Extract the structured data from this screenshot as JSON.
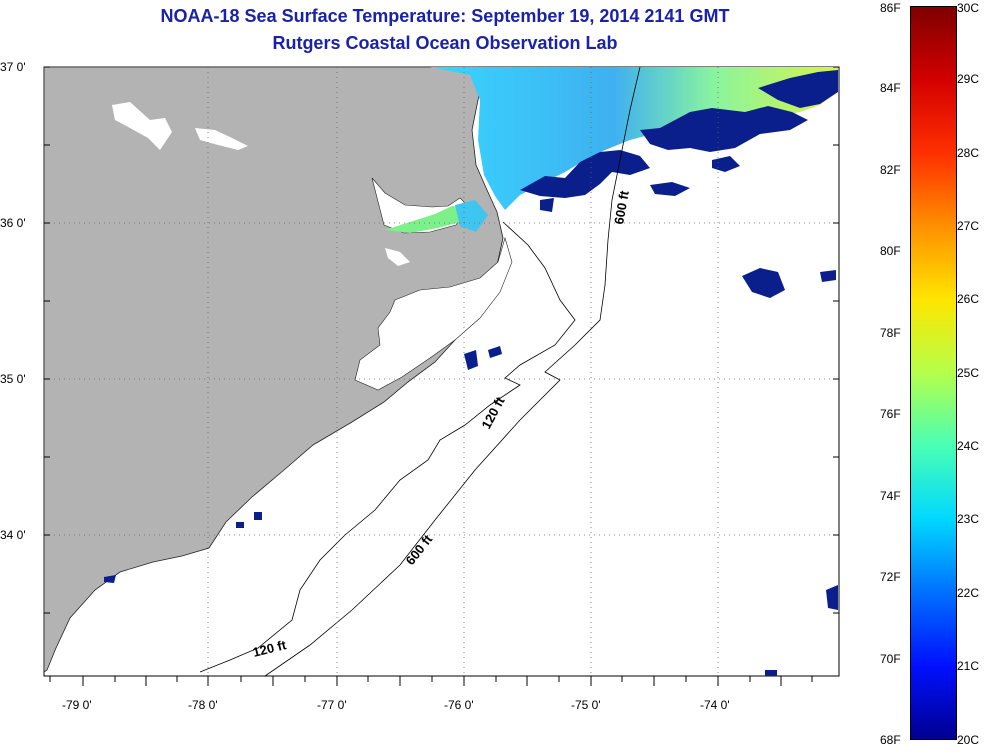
{
  "title": "NOAA-18 Sea Surface Temperature:  September 19, 2014 2141 GMT",
  "subtitle": "Rutgers Coastal Ocean Observation Lab",
  "latitude_labels": [
    "37 0'",
    "36 0'",
    "35 0'",
    "34 0'"
  ],
  "longitude_labels": [
    "-79 0'",
    "-78 0'",
    "-77 0'",
    "-76 0'",
    "-75 0'",
    "-74 0'"
  ],
  "contour_labels": {
    "c600_north": "600 ft",
    "c120_mid": "120 ft",
    "c600_south": "600 ft",
    "c120_south": "120 ft"
  },
  "colorbar": {
    "fahrenheit": [
      "86F",
      "84F",
      "82F",
      "80F",
      "78F",
      "76F",
      "74F",
      "72F",
      "70F",
      "68F"
    ],
    "celsius": [
      "30C",
      "29C",
      "28C",
      "27C",
      "26C",
      "25C",
      "24C",
      "23C",
      "22C",
      "21C",
      "20C"
    ],
    "stops": [
      "#7f0000",
      "#d40000",
      "#ff3000",
      "#ff9000",
      "#ffe600",
      "#b4ff4a",
      "#48ffb6",
      "#00d8ff",
      "#0070ff",
      "#0010ff",
      "#00008f"
    ]
  },
  "colors": {
    "land": "#b3b3b3",
    "ocean": "#ffffff",
    "title": "#1a22a8"
  }
}
